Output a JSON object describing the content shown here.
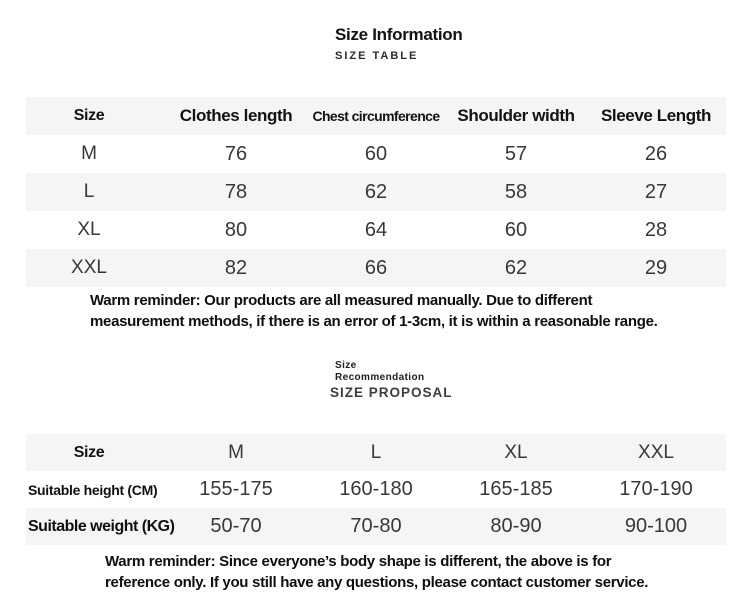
{
  "header": {
    "title": "Size Information",
    "subtitle": "SIZE TABLE"
  },
  "colors": {
    "stripe": "#f5f5f5",
    "ink": "#151515",
    "value_ink": "#383838"
  },
  "size_table": {
    "headers": [
      "Size",
      "Clothes length",
      "Chest circumference",
      "Shoulder width",
      "Sleeve Length"
    ],
    "rows": [
      {
        "size": "M",
        "values": [
          "76",
          "60",
          "57",
          "26"
        ]
      },
      {
        "size": "L",
        "values": [
          "78",
          "62",
          "58",
          "27"
        ]
      },
      {
        "size": "XL",
        "values": [
          "80",
          "64",
          "60",
          "28"
        ]
      },
      {
        "size": "XXL",
        "values": [
          "82",
          "66",
          "62",
          "29"
        ]
      }
    ],
    "reminder_line1": "Warm reminder: Our products are all measured manually. Due to different",
    "reminder_line2": "measurement methods, if there is an error of 1-3cm, it is within a reasonable range."
  },
  "recommendation": {
    "label_line1": "Size",
    "label_line2": "Recommendation",
    "subtitle": "SIZE PROPOSAL",
    "headers": [
      "Size",
      "M",
      "L",
      "XL",
      "XXL"
    ],
    "rows": [
      {
        "label": "Suitable height (CM)",
        "values": [
          "155-175",
          "160-180",
          "165-185",
          "170-190"
        ]
      },
      {
        "label": "Suitable weight (KG)",
        "values": [
          "50-70",
          "70-80",
          "80-90",
          "90-100"
        ]
      }
    ],
    "reminder_line1": "Warm reminder: Since everyone’s body shape is different, the above is for",
    "reminder_line2": "reference only. If you still have any questions, please contact customer service."
  }
}
